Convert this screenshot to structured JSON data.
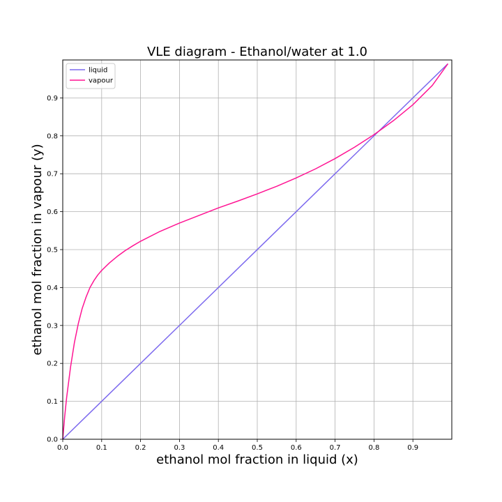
{
  "chart_data": {
    "type": "line",
    "title": "VLE diagram - Ethanol/water at 1.0",
    "xlabel": "ethanol mol fraction in liquid (x)",
    "ylabel": "ethanol mol fraction in vapour (y)",
    "xlim": [
      0.0,
      1.0
    ],
    "ylim": [
      0.0,
      1.0
    ],
    "grid": true,
    "legend_position": "top-left",
    "x_ticks": [
      "0.0",
      "0.1",
      "0.2",
      "0.3",
      "0.4",
      "0.5",
      "0.6",
      "0.7",
      "0.8",
      "0.9"
    ],
    "y_ticks": [
      "0.0",
      "0.1",
      "0.2",
      "0.3",
      "0.4",
      "0.5",
      "0.6",
      "0.7",
      "0.8",
      "0.9"
    ],
    "series": [
      {
        "name": "liquid",
        "color": "#7b68ee",
        "x": [
          0.0,
          0.99
        ],
        "y": [
          0.0,
          0.99
        ]
      },
      {
        "name": "vapour",
        "color": "#ff1493",
        "x": [
          0.0,
          0.005,
          0.01,
          0.02,
          0.03,
          0.04,
          0.05,
          0.06,
          0.07,
          0.08,
          0.09,
          0.1,
          0.12,
          0.14,
          0.16,
          0.18,
          0.2,
          0.25,
          0.3,
          0.35,
          0.4,
          0.45,
          0.5,
          0.55,
          0.6,
          0.65,
          0.7,
          0.75,
          0.8,
          0.85,
          0.9,
          0.95,
          0.99
        ],
        "y": [
          0.0,
          0.06,
          0.11,
          0.19,
          0.255,
          0.305,
          0.345,
          0.375,
          0.4,
          0.418,
          0.433,
          0.445,
          0.465,
          0.482,
          0.497,
          0.51,
          0.522,
          0.548,
          0.57,
          0.59,
          0.61,
          0.628,
          0.647,
          0.667,
          0.689,
          0.713,
          0.74,
          0.77,
          0.803,
          0.84,
          0.882,
          0.933,
          0.99
        ]
      }
    ]
  }
}
